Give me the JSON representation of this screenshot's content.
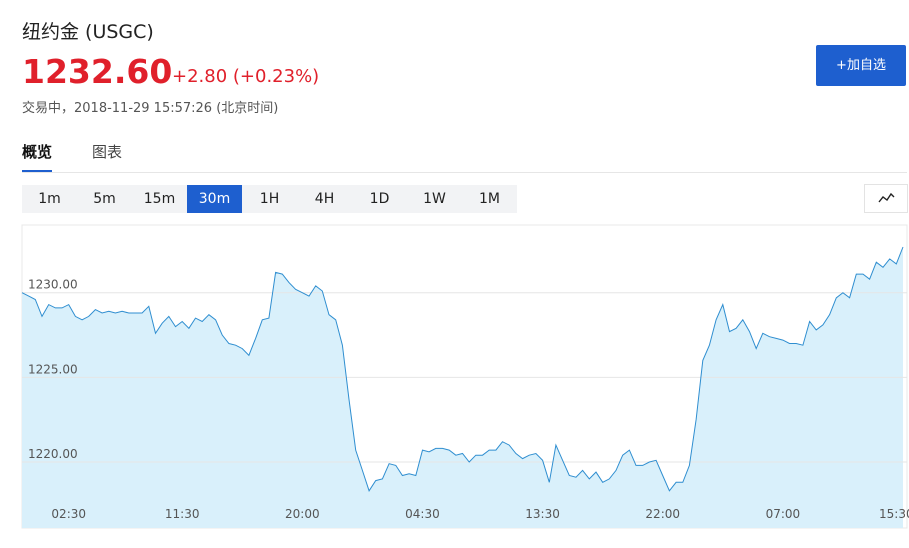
{
  "header": {
    "title": "纽约金 (USGC)",
    "price": "1232.60",
    "change": "+2.80 (+0.23%)",
    "status": "交易中，2018-11-29 15:57:26 (北京时间)",
    "button": "+加自选"
  },
  "tabs": [
    "概览",
    "图表"
  ],
  "intervals": [
    "1m",
    "5m",
    "15m",
    "30m",
    "1H",
    "4H",
    "1D",
    "1W",
    "1M"
  ],
  "chart_data": {
    "type": "area",
    "color": "#2f8ed0",
    "fill": "#d9f0fb",
    "grid": true,
    "ylim": [
      1216.1,
      1234.0
    ],
    "yticks": [
      {
        "value": 1220,
        "label": "1220.00"
      },
      {
        "value": 1225,
        "label": "1225.00"
      },
      {
        "value": 1230,
        "label": "1230.00"
      }
    ],
    "categories": [
      null,
      null,
      null,
      null,
      null,
      null,
      null,
      "02:30",
      null,
      null,
      null,
      null,
      null,
      null,
      null,
      null,
      null,
      null,
      null,
      null,
      null,
      null,
      null,
      null,
      "11:30",
      null,
      null,
      null,
      null,
      null,
      null,
      null,
      null,
      null,
      null,
      null,
      null,
      null,
      null,
      null,
      null,
      null,
      "20:00",
      null,
      null,
      null,
      null,
      null,
      null,
      null,
      null,
      null,
      null,
      null,
      null,
      null,
      null,
      null,
      null,
      null,
      "04:30",
      null,
      null,
      null,
      null,
      null,
      null,
      null,
      null,
      null,
      null,
      null,
      null,
      null,
      null,
      null,
      null,
      null,
      "13:30",
      null,
      null,
      null,
      null,
      null,
      null,
      null,
      null,
      null,
      null,
      null,
      null,
      null,
      null,
      null,
      null,
      null,
      "22:00",
      null,
      null,
      null,
      null,
      null,
      null,
      null,
      null,
      null,
      null,
      null,
      null,
      null,
      null,
      null,
      null,
      null,
      "07:00",
      null,
      null,
      null,
      null,
      null,
      null,
      null,
      null,
      null,
      null,
      null,
      null,
      null,
      null,
      null,
      null,
      "15:30",
      null
    ],
    "values": [
      1230.0,
      1229.8,
      1229.6,
      1228.6,
      1229.3,
      1229.1,
      1229.1,
      1229.3,
      1228.6,
      1228.4,
      1228.6,
      1229.0,
      1228.8,
      1228.9,
      1228.8,
      1228.9,
      1228.8,
      1228.8,
      1228.8,
      1229.2,
      1227.6,
      1228.2,
      1228.6,
      1228.0,
      1228.3,
      1227.9,
      1228.5,
      1228.3,
      1228.7,
      1228.4,
      1227.5,
      1227.0,
      1226.9,
      1226.7,
      1226.3,
      1227.3,
      1228.4,
      1228.5,
      1231.2,
      1231.1,
      1230.6,
      1230.2,
      1230.0,
      1229.8,
      1230.4,
      1230.1,
      1228.7,
      1228.4,
      1226.9,
      1223.7,
      1220.7,
      1219.5,
      1218.3,
      1218.9,
      1219.0,
      1219.9,
      1219.8,
      1219.2,
      1219.3,
      1219.2,
      1220.7,
      1220.6,
      1220.8,
      1220.8,
      1220.7,
      1220.4,
      1220.5,
      1220.0,
      1220.4,
      1220.4,
      1220.7,
      1220.7,
      1221.2,
      1221.0,
      1220.5,
      1220.2,
      1220.4,
      1220.5,
      1220.1,
      1218.8,
      1221.0,
      1220.1,
      1219.2,
      1219.1,
      1219.5,
      1219.0,
      1219.4,
      1218.8,
      1219.0,
      1219.5,
      1220.4,
      1220.7,
      1219.8,
      1219.8,
      1220.0,
      1220.1,
      1219.2,
      1218.3,
      1218.8,
      1218.8,
      1219.8,
      1222.5,
      1226.0,
      1226.9,
      1228.4,
      1229.3,
      1227.7,
      1227.9,
      1228.4,
      1227.7,
      1226.7,
      1227.6,
      1227.4,
      1227.3,
      1227.2,
      1227.0,
      1227.0,
      1226.9,
      1228.3,
      1227.8,
      1228.1,
      1228.7,
      1229.7,
      1230.0,
      1229.7,
      1231.1,
      1231.1,
      1230.8,
      1231.8,
      1231.5,
      1232.0,
      1231.7,
      1232.7
    ]
  }
}
